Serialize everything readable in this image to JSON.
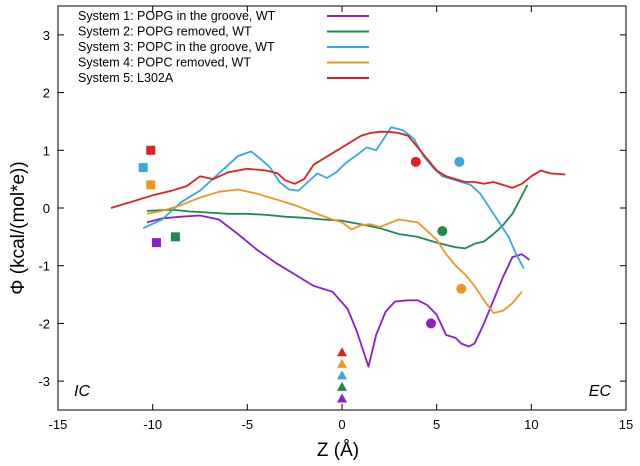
{
  "chart_data": {
    "type": "line",
    "xlabel": "Z  (Å)",
    "ylabel": "Φ  (kcal/(mol*e))",
    "xlim": [
      -15,
      15
    ],
    "ylim": [
      -3.5,
      3.5
    ],
    "xticks": [
      -15,
      -10,
      -5,
      0,
      5,
      10,
      15
    ],
    "yticks": [
      -3,
      -2,
      -1,
      0,
      1,
      2,
      3
    ],
    "region_labels": {
      "left": "IC",
      "right": "EC"
    },
    "series": [
      {
        "name": "System 1: POPG in the groove, WT",
        "color": "#8b1fc8",
        "x": [
          -10.3,
          -9.5,
          -8.5,
          -7.5,
          -6.5,
          -5.5,
          -4.5,
          -3.5,
          -2.5,
          -1.5,
          -0.5,
          0.3,
          0.8,
          1.4,
          1.8,
          2.3,
          2.8,
          3.5,
          4.0,
          4.5,
          5.0,
          5.5,
          6.0,
          6.3,
          6.7,
          7.0,
          7.5,
          8.0,
          8.5,
          9.0,
          9.5,
          9.9
        ],
        "values": [
          -0.25,
          -0.18,
          -0.15,
          -0.13,
          -0.2,
          -0.45,
          -0.72,
          -0.95,
          -1.15,
          -1.35,
          -1.45,
          -1.75,
          -2.15,
          -2.75,
          -2.2,
          -1.8,
          -1.62,
          -1.6,
          -1.6,
          -1.68,
          -1.85,
          -2.2,
          -2.25,
          -2.35,
          -2.4,
          -2.35,
          -2.0,
          -1.6,
          -1.2,
          -0.85,
          -0.8,
          -0.9
        ]
      },
      {
        "name": "System 2: POPG removed, WT",
        "color": "#1e8a4e",
        "x": [
          -10.3,
          -9,
          -8,
          -7,
          -6,
          -5,
          -4,
          -3,
          -2,
          -1,
          0,
          1,
          2,
          3,
          4,
          5,
          6,
          6.5,
          7,
          7.5,
          8,
          8.5,
          9,
          9.4,
          9.8
        ],
        "values": [
          -0.05,
          -0.03,
          -0.06,
          -0.08,
          -0.1,
          -0.1,
          -0.12,
          -0.15,
          -0.17,
          -0.2,
          -0.22,
          -0.28,
          -0.35,
          -0.45,
          -0.5,
          -0.6,
          -0.68,
          -0.7,
          -0.62,
          -0.58,
          -0.45,
          -0.3,
          -0.1,
          0.15,
          0.4
        ]
      },
      {
        "name": "System 3: POPC in the groove, WT",
        "color": "#3aa8e0",
        "x": [
          -10.5,
          -9.5,
          -8.5,
          -7.5,
          -6.5,
          -5.5,
          -4.8,
          -4.3,
          -3.8,
          -3.3,
          -2.8,
          -2.3,
          -1.8,
          -1.3,
          -0.8,
          -0.3,
          0.2,
          0.8,
          1.3,
          1.8,
          2.2,
          2.6,
          3.2,
          3.8,
          4.3,
          4.8,
          5.3,
          5.8,
          6.3,
          6.8,
          7.3,
          7.8,
          8.3,
          8.8,
          9.2,
          9.6
        ],
        "values": [
          -0.35,
          -0.2,
          0.1,
          0.3,
          0.6,
          0.9,
          0.98,
          0.85,
          0.7,
          0.45,
          0.32,
          0.3,
          0.45,
          0.6,
          0.52,
          0.62,
          0.78,
          0.92,
          1.05,
          1.0,
          1.2,
          1.4,
          1.35,
          1.2,
          0.9,
          0.7,
          0.55,
          0.5,
          0.45,
          0.4,
          0.25,
          0.0,
          -0.25,
          -0.5,
          -0.8,
          -1.05
        ]
      },
      {
        "name": "System 4: POPC removed, WT",
        "color": "#f0961e",
        "x": [
          -10.3,
          -9.5,
          -8.5,
          -7.5,
          -6.5,
          -5.5,
          -4.5,
          -3.5,
          -2.5,
          -1.5,
          -0.5,
          0,
          0.5,
          1,
          1.5,
          2,
          3,
          4,
          4.5,
          5,
          5.5,
          6,
          6.5,
          7,
          7.5,
          8,
          8.5,
          9,
          9.5
        ],
        "values": [
          -0.1,
          -0.05,
          0.05,
          0.18,
          0.28,
          0.32,
          0.25,
          0.15,
          0.05,
          -0.08,
          -0.2,
          -0.25,
          -0.37,
          -0.3,
          -0.28,
          -0.33,
          -0.2,
          -0.25,
          -0.4,
          -0.55,
          -0.8,
          -1.0,
          -1.15,
          -1.35,
          -1.6,
          -1.82,
          -1.78,
          -1.65,
          -1.45
        ]
      },
      {
        "name": "System 5: L302A",
        "color": "#e02020",
        "x": [
          -12.2,
          -11,
          -10,
          -9,
          -8.2,
          -7.5,
          -6.8,
          -6,
          -5,
          -4,
          -3.4,
          -3,
          -2.5,
          -2,
          -1.5,
          -1,
          -0.5,
          0,
          0.5,
          1,
          1.5,
          2,
          2.5,
          3,
          3.5,
          4,
          4.5,
          5,
          5.5,
          6,
          6.5,
          7,
          7.5,
          8,
          8.5,
          9,
          9.5,
          10,
          10.5,
          11,
          11.8
        ],
        "values": [
          0.0,
          0.12,
          0.22,
          0.3,
          0.38,
          0.55,
          0.5,
          0.62,
          0.68,
          0.65,
          0.6,
          0.48,
          0.42,
          0.5,
          0.75,
          0.85,
          0.95,
          1.05,
          1.15,
          1.25,
          1.3,
          1.32,
          1.32,
          1.3,
          1.25,
          1.05,
          0.85,
          0.65,
          0.55,
          0.5,
          0.45,
          0.45,
          0.42,
          0.45,
          0.4,
          0.35,
          0.42,
          0.55,
          0.65,
          0.6,
          0.58
        ]
      }
    ],
    "markers": [
      {
        "shape": "square",
        "color": "#e02020",
        "x": -10.1,
        "y": 1.0
      },
      {
        "shape": "square",
        "color": "#3aa8e0",
        "x": -10.5,
        "y": 0.7
      },
      {
        "shape": "square",
        "color": "#f0961e",
        "x": -10.1,
        "y": 0.4
      },
      {
        "shape": "square",
        "color": "#8b1fc8",
        "x": -9.8,
        "y": -0.6
      },
      {
        "shape": "square",
        "color": "#1e8a4e",
        "x": -8.8,
        "y": -0.5
      },
      {
        "shape": "circle",
        "color": "#e02020",
        "x": 3.9,
        "y": 0.8
      },
      {
        "shape": "circle",
        "color": "#3aa8e0",
        "x": 6.2,
        "y": 0.8
      },
      {
        "shape": "circle",
        "color": "#1e8a4e",
        "x": 5.3,
        "y": -0.4
      },
      {
        "shape": "circle",
        "color": "#f0961e",
        "x": 6.3,
        "y": -1.4
      },
      {
        "shape": "circle",
        "color": "#8b1fc8",
        "x": 4.7,
        "y": -2.0
      },
      {
        "shape": "triangle",
        "color": "#e02020",
        "x": 0.0,
        "y": -2.5
      },
      {
        "shape": "triangle",
        "color": "#f0961e",
        "x": 0.0,
        "y": -2.7
      },
      {
        "shape": "triangle",
        "color": "#3aa8e0",
        "x": 0.0,
        "y": -2.9
      },
      {
        "shape": "triangle",
        "color": "#1e8a4e",
        "x": 0.0,
        "y": -3.1
      },
      {
        "shape": "triangle",
        "color": "#8b1fc8",
        "x": 0.0,
        "y": -3.3
      }
    ],
    "legend_position": "top-left"
  }
}
